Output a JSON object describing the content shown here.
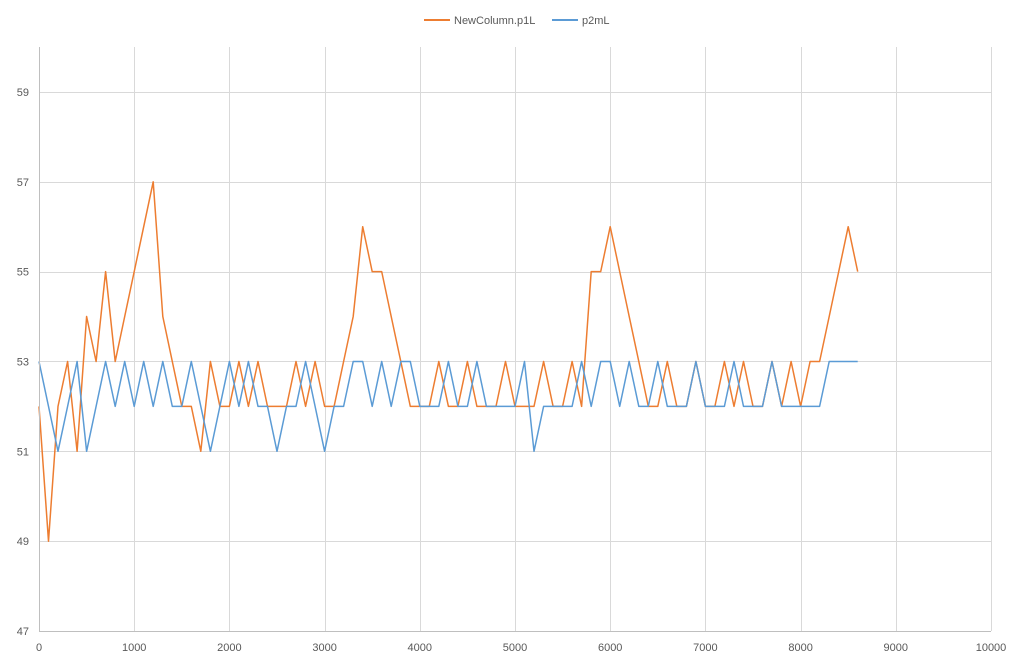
{
  "chart_data": {
    "type": "line",
    "title": "",
    "xlabel": "",
    "ylabel": "",
    "xlim": [
      0,
      10000
    ],
    "ylim": [
      47,
      60
    ],
    "x_ticks": [
      0,
      1000,
      2000,
      3000,
      4000,
      5000,
      6000,
      7000,
      8000,
      9000,
      10000
    ],
    "x_tick_labels": [
      "0",
      "1000",
      "2000",
      "3000",
      "4000",
      "5000",
      "6000",
      "7000",
      "8000",
      "9000",
      "10000"
    ],
    "y_ticks": [
      47,
      49,
      51,
      53,
      55,
      57,
      59
    ],
    "y_tick_labels": [
      "47",
      "49",
      "51",
      "53",
      "55",
      "57",
      "59"
    ],
    "grid": true,
    "legend_position": "top",
    "x": [
      0,
      100,
      200,
      300,
      400,
      500,
      600,
      700,
      800,
      900,
      1000,
      1100,
      1200,
      1300,
      1400,
      1500,
      1600,
      1700,
      1800,
      1900,
      2000,
      2100,
      2200,
      2300,
      2400,
      2500,
      2600,
      2700,
      2800,
      2900,
      3000,
      3100,
      3200,
      3300,
      3400,
      3500,
      3600,
      3700,
      3800,
      3900,
      4000,
      4100,
      4200,
      4300,
      4400,
      4500,
      4600,
      4700,
      4800,
      4900,
      5000,
      5100,
      5200,
      5300,
      5400,
      5500,
      5600,
      5700,
      5800,
      5900,
      6000,
      6100,
      6200,
      6300,
      6400,
      6500,
      6600,
      6700,
      6800,
      6900,
      7000,
      7100,
      7200,
      7300,
      7400,
      7500,
      7600,
      7700,
      7800,
      7900,
      8000,
      8100,
      8200,
      8300,
      8400,
      8500,
      8600
    ],
    "series": [
      {
        "name": "NewColumn.p1L",
        "color": "#ED7D31",
        "values": [
          52,
          49,
          52,
          53,
          51,
          54,
          53,
          55,
          53,
          54,
          55,
          56,
          57,
          54,
          53,
          52,
          52,
          51,
          53,
          52,
          52,
          53,
          52,
          53,
          52,
          52,
          52,
          53,
          52,
          53,
          52,
          52,
          53,
          54,
          56,
          55,
          55,
          54,
          53,
          52,
          52,
          52,
          53,
          52,
          52,
          53,
          52,
          52,
          52,
          53,
          52,
          52,
          52,
          53,
          52,
          52,
          53,
          52,
          55,
          55,
          56,
          55,
          54,
          53,
          52,
          52,
          53,
          52,
          52,
          53,
          52,
          52,
          53,
          52,
          53,
          52,
          52,
          53,
          52,
          53,
          52,
          53,
          53,
          54,
          55,
          56,
          55
        ]
      },
      {
        "name": "p2mL",
        "color": "#5B9BD5",
        "values": [
          53,
          52,
          51,
          52,
          53,
          51,
          52,
          53,
          52,
          53,
          52,
          53,
          52,
          53,
          52,
          52,
          53,
          52,
          51,
          52,
          53,
          52,
          53,
          52,
          52,
          51,
          52,
          52,
          53,
          52,
          51,
          52,
          52,
          53,
          53,
          52,
          53,
          52,
          53,
          53,
          52,
          52,
          52,
          53,
          52,
          52,
          53,
          52,
          52,
          52,
          52,
          53,
          51,
          52,
          52,
          52,
          52,
          53,
          52,
          53,
          53,
          52,
          53,
          52,
          52,
          53,
          52,
          52,
          52,
          53,
          52,
          52,
          52,
          53,
          52,
          52,
          52,
          53,
          52,
          52,
          52,
          52,
          52,
          53,
          53,
          53,
          53
        ]
      }
    ]
  }
}
